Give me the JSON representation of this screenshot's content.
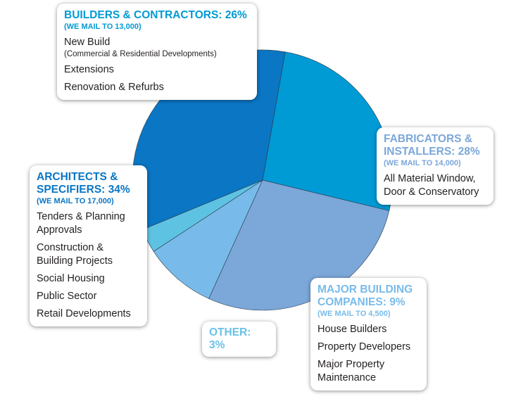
{
  "chart_data": {
    "type": "pie",
    "slices": [
      {
        "name": "BUILDERS & CONTRACTORS",
        "value": 26,
        "color": "#009ad5"
      },
      {
        "name": "FABRICATORS & INSTALLERS",
        "value": 28,
        "color": "#7ba7d9"
      },
      {
        "name": "MAJOR BUILDING COMPANIES",
        "value": 9,
        "color": "#78bbea"
      },
      {
        "name": "OTHER",
        "value": 3,
        "color": "#5ec3e3"
      },
      {
        "name": "ARCHITECTS & SPECIFIERS",
        "value": 34,
        "color": "#0a76c4"
      }
    ]
  },
  "labels": {
    "builders": {
      "head": "BUILDERS & CONTRACTORS: 26%",
      "sub": "(WE MAIL TO 13,000)",
      "items": [
        {
          "text": "New Build",
          "note": "(Commercial & Residential Developments)"
        },
        {
          "text": "Extensions"
        },
        {
          "text": "Renovation & Refurbs"
        }
      ]
    },
    "fabricators": {
      "head": "FABRICATORS & INSTALLERS: 28%",
      "sub": "(WE MAIL TO 14,000)",
      "items": [
        "All Material Window, Door & Conservatory"
      ]
    },
    "architects": {
      "head": "ARCHITECTS & SPECIFIERS: 34%",
      "sub": "(WE MAIL TO 17,000)",
      "items": [
        "Tenders & Planning Approvals",
        "Construction & Building Projects",
        "Social Housing",
        "Public Sector",
        "Retail Developments"
      ]
    },
    "major": {
      "head": "MAJOR BUILDING COMPANIES: 9%",
      "sub": "(WE MAIL TO 4,500)",
      "items": [
        "House Builders",
        "Property Developers",
        "Major Property Maintenance"
      ]
    },
    "other": {
      "head": "OTHER: 3%"
    }
  }
}
